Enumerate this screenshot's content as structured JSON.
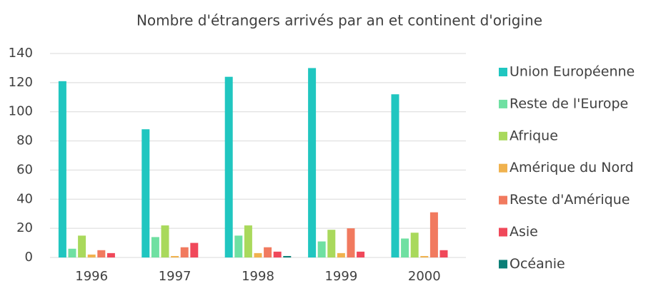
{
  "chart_data": {
    "type": "bar",
    "title": "Nombre d'étrangers arrivés par an et continent d'origine",
    "categories": [
      "1996",
      "1997",
      "1998",
      "1999",
      "2000"
    ],
    "series": [
      {
        "name": "Union Européenne",
        "color": "#20c6c0",
        "values": [
          121,
          88,
          124,
          130,
          112
        ]
      },
      {
        "name": "Reste de l'Europe",
        "color": "#6fe0a2",
        "values": [
          6,
          14,
          15,
          11,
          13
        ]
      },
      {
        "name": "Afrique",
        "color": "#a9d95c",
        "values": [
          15,
          22,
          22,
          19,
          17
        ]
      },
      {
        "name": "Amérique du Nord",
        "color": "#f0b24e",
        "values": [
          2,
          1,
          3,
          3,
          1
        ]
      },
      {
        "name": "Reste d'Amérique",
        "color": "#f17a5f",
        "values": [
          5,
          7,
          7,
          20,
          31
        ]
      },
      {
        "name": "Asie",
        "color": "#f0485a",
        "values": [
          3,
          10,
          4,
          4,
          5
        ]
      },
      {
        "name": "Océanie",
        "color": "#0b7f77",
        "values": [
          0,
          0,
          1,
          0,
          0
        ]
      }
    ],
    "ylim": [
      0,
      140
    ],
    "yticks": [
      0,
      20,
      40,
      60,
      80,
      100,
      120,
      140
    ],
    "grid": true,
    "legend": "right"
  }
}
